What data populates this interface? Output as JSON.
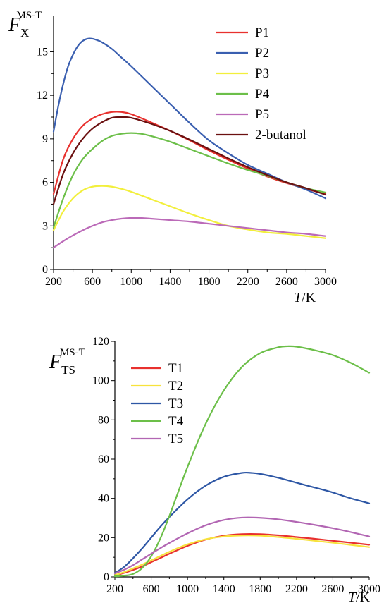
{
  "colors": {
    "P1": "#e8312e",
    "P2": "#3a5fb0",
    "P3": "#f2ef3c",
    "P4": "#6cbf49",
    "P5": "#bb6ab8",
    "2-butanol": "#6b1010",
    "T1": "#e8312e",
    "T2": "#f7e23c",
    "T3": "#2e57a5",
    "T4": "#6cbf49",
    "T5": "#b266b3"
  },
  "chart_data": [
    {
      "type": "line",
      "ylabel_main": "F",
      "ylabel_sub": "X",
      "ylabel_sup": "MS-T",
      "xlabel_italic": "T",
      "xlabel_rest": "/K",
      "xlim": [
        200,
        3000
      ],
      "ylim": [
        0,
        17.5
      ],
      "xticks": [
        200,
        600,
        1000,
        1400,
        1800,
        2200,
        2600,
        3000
      ],
      "yticks": [
        0,
        3,
        6,
        9,
        12,
        15
      ],
      "legend_position": "top-right",
      "series": [
        {
          "name": "P1",
          "x": [
            200,
            300,
            400,
            500,
            600,
            700,
            800,
            900,
            1000,
            1200,
            1400,
            1600,
            1800,
            2000,
            2200,
            2400,
            2600,
            2800,
            3000
          ],
          "y": [
            5.2,
            7.6,
            9.0,
            9.9,
            10.4,
            10.7,
            10.85,
            10.85,
            10.7,
            10.15,
            9.55,
            8.9,
            8.2,
            7.55,
            6.95,
            6.4,
            5.95,
            5.55,
            5.2
          ]
        },
        {
          "name": "P2",
          "x": [
            200,
            250,
            300,
            350,
            400,
            450,
            500,
            550,
            600,
            650,
            700,
            800,
            900,
            1000,
            1200,
            1400,
            1600,
            1800,
            2000,
            2200,
            2400,
            2600,
            2800,
            3000
          ],
          "y": [
            9.5,
            11.3,
            12.8,
            14.0,
            14.8,
            15.4,
            15.75,
            15.9,
            15.9,
            15.8,
            15.65,
            15.2,
            14.6,
            14.0,
            12.7,
            11.4,
            10.1,
            8.9,
            8.0,
            7.2,
            6.6,
            6.0,
            5.5,
            4.9
          ]
        },
        {
          "name": "P3",
          "x": [
            200,
            300,
            400,
            500,
            600,
            700,
            800,
            900,
            1000,
            1200,
            1400,
            1600,
            1800,
            2000,
            2200,
            2400,
            2600,
            2800,
            3000
          ],
          "y": [
            2.7,
            4.0,
            4.9,
            5.45,
            5.7,
            5.75,
            5.7,
            5.55,
            5.35,
            4.85,
            4.35,
            3.85,
            3.4,
            3.0,
            2.75,
            2.55,
            2.45,
            2.3,
            2.15
          ]
        },
        {
          "name": "P4",
          "x": [
            200,
            300,
            400,
            500,
            600,
            700,
            800,
            900,
            1000,
            1100,
            1200,
            1400,
            1600,
            1800,
            2000,
            2200,
            2400,
            2600,
            2800,
            3000
          ],
          "y": [
            2.9,
            4.9,
            6.5,
            7.6,
            8.3,
            8.85,
            9.2,
            9.35,
            9.4,
            9.35,
            9.2,
            8.8,
            8.3,
            7.8,
            7.3,
            6.85,
            6.45,
            6.0,
            5.6,
            5.3
          ]
        },
        {
          "name": "P5",
          "x": [
            200,
            300,
            400,
            500,
            600,
            700,
            800,
            900,
            1000,
            1100,
            1200,
            1400,
            1600,
            1800,
            2000,
            2200,
            2400,
            2600,
            2800,
            3000
          ],
          "y": [
            1.5,
            1.95,
            2.35,
            2.7,
            3.0,
            3.25,
            3.4,
            3.5,
            3.55,
            3.55,
            3.5,
            3.4,
            3.3,
            3.15,
            3.0,
            2.85,
            2.7,
            2.55,
            2.45,
            2.3
          ]
        },
        {
          "name": "2-butanol",
          "x": [
            200,
            300,
            400,
            500,
            600,
            700,
            800,
            900,
            1000,
            1200,
            1400,
            1600,
            1800,
            2000,
            2200,
            2400,
            2600,
            2800,
            3000
          ],
          "y": [
            4.5,
            6.6,
            8.0,
            9.0,
            9.7,
            10.15,
            10.45,
            10.5,
            10.45,
            10.05,
            9.55,
            8.95,
            8.3,
            7.65,
            7.05,
            6.5,
            6.0,
            5.6,
            5.15
          ]
        }
      ]
    },
    {
      "type": "line",
      "ylabel_main": "F",
      "ylabel_sub": "TS",
      "ylabel_sup": "MS-T",
      "xlabel_italic": "T",
      "xlabel_rest": "/K",
      "xlim": [
        200,
        3000
      ],
      "ylim": [
        0,
        120
      ],
      "xticks": [
        200,
        600,
        1000,
        1400,
        1800,
        2200,
        2600,
        3000
      ],
      "yticks": [
        0,
        20,
        40,
        60,
        80,
        100,
        120
      ],
      "legend_position": "top-left",
      "series": [
        {
          "name": "T1",
          "x": [
            200,
            300,
            400,
            500,
            600,
            700,
            800,
            1000,
            1200,
            1400,
            1600,
            1800,
            2000,
            2200,
            2400,
            2600,
            2800,
            3000
          ],
          "y": [
            0.8,
            2.0,
            3.5,
            5.3,
            7.5,
            9.6,
            11.8,
            15.8,
            19.0,
            21.0,
            21.8,
            21.8,
            21.2,
            20.3,
            19.4,
            18.4,
            17.4,
            16.4
          ]
        },
        {
          "name": "T2",
          "x": [
            200,
            300,
            400,
            500,
            600,
            700,
            800,
            1000,
            1200,
            1400,
            1600,
            1800,
            2000,
            2200,
            2400,
            2600,
            2800,
            3000
          ],
          "y": [
            0.9,
            2.4,
            4.3,
            6.3,
            8.4,
            10.6,
            12.8,
            16.6,
            19.2,
            20.6,
            21.1,
            21.0,
            20.3,
            19.4,
            18.4,
            17.4,
            16.3,
            15.2
          ]
        },
        {
          "name": "T3",
          "x": [
            200,
            300,
            400,
            500,
            600,
            700,
            800,
            1000,
            1200,
            1400,
            1600,
            1700,
            1800,
            2000,
            2200,
            2400,
            2600,
            2800,
            3000
          ],
          "y": [
            2.0,
            5.0,
            9.5,
            14.5,
            20.0,
            25.5,
            30.5,
            39.5,
            46.5,
            51.0,
            53.0,
            53.0,
            52.5,
            50.5,
            48.0,
            45.5,
            43.0,
            40.0,
            37.5
          ]
        },
        {
          "name": "T4",
          "x": [
            200,
            300,
            400,
            500,
            600,
            700,
            800,
            1000,
            1200,
            1400,
            1600,
            1800,
            2000,
            2100,
            2200,
            2400,
            2600,
            2800,
            3000
          ],
          "y": [
            0.3,
            0.6,
            1.5,
            4.5,
            10.5,
            19.5,
            31.0,
            56.0,
            78.0,
            95.0,
            107.0,
            114.0,
            117.0,
            117.5,
            117.3,
            115.5,
            113.0,
            109.0,
            104.0
          ]
        },
        {
          "name": "T5",
          "x": [
            200,
            300,
            400,
            500,
            600,
            700,
            800,
            1000,
            1200,
            1400,
            1600,
            1800,
            2000,
            2200,
            2400,
            2600,
            2800,
            3000
          ],
          "y": [
            1.8,
            3.6,
            6.0,
            8.9,
            11.8,
            14.6,
            17.3,
            22.2,
            26.3,
            29.0,
            30.2,
            30.1,
            29.3,
            28.0,
            26.5,
            24.8,
            22.8,
            20.6
          ]
        }
      ]
    }
  ]
}
